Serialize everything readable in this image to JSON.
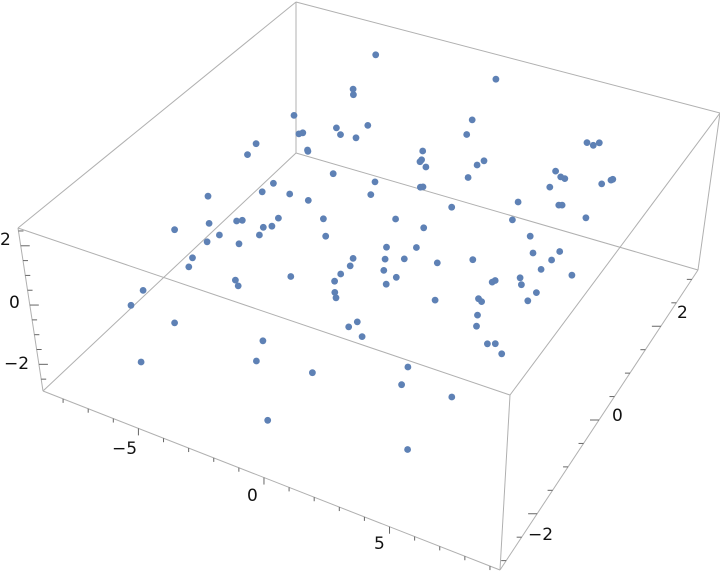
{
  "chart_data": {
    "type": "scatter3d",
    "title": "",
    "xlabel": "",
    "ylabel": "",
    "zlabel": "",
    "xlim": [
      -8.8,
      9.4
    ],
    "ylim": [
      -3.2,
      3.2
    ],
    "zlim": [
      -2.9,
      2.6
    ],
    "x_ticks": [
      "−5",
      "0",
      "5"
    ],
    "y_ticks": [
      "−2",
      "0",
      "2"
    ],
    "z_ticks": [
      "−2",
      "0",
      "2"
    ],
    "box": true,
    "grid": false,
    "point_color": "#5e81b5",
    "box_color": "#b0b0b0",
    "points": [
      [
        -5.2,
        0.3,
        0.5
      ],
      [
        -4.6,
        1.8,
        0.9
      ],
      [
        -5.8,
        -1.2,
        -0.3
      ],
      [
        -4.9,
        2.4,
        1.2
      ],
      [
        -5.5,
        -0.6,
        0.1
      ],
      [
        -4.3,
        0.9,
        1.4
      ],
      [
        -6.1,
        1.1,
        -0.5
      ],
      [
        -5.0,
        -2.1,
        -0.8
      ],
      [
        -4.7,
        0.0,
        -0.2
      ],
      [
        -5.3,
        1.5,
        0.3
      ],
      [
        -6.4,
        -0.3,
        0.8
      ],
      [
        -4.1,
        2.0,
        0.4
      ],
      [
        -5.9,
        0.6,
        1.6
      ],
      [
        -5.1,
        -1.5,
        0.6
      ],
      [
        -4.5,
        -0.8,
        -1.1
      ],
      [
        -5.6,
        2.8,
        0.7
      ],
      [
        -4.8,
        1.2,
        -0.9
      ],
      [
        -6.7,
        -1.8,
        -0.6
      ],
      [
        -5.4,
        0.1,
        2.0
      ],
      [
        -4.2,
        -0.4,
        0.2
      ],
      [
        -5.0,
        3.0,
        1.8
      ],
      [
        -6.0,
        -2.5,
        0.0
      ],
      [
        -4.4,
        1.6,
        -0.4
      ],
      [
        -5.7,
        0.8,
        -1.5
      ],
      [
        -5.2,
        -1.0,
        1.1
      ],
      [
        -4.9,
        0.5,
        -0.6
      ],
      [
        -6.2,
        1.9,
        0.2
      ],
      [
        -3.9,
        0.2,
        0.9
      ],
      [
        -5.3,
        -2.8,
        -1.3
      ],
      [
        -4.6,
        2.6,
        -0.1
      ],
      [
        -5.8,
        -0.1,
        -2.2
      ],
      [
        -5.0,
        1.0,
        2.3
      ],
      [
        -4.3,
        -1.6,
        1.5
      ],
      [
        -6.5,
        0.4,
        -1.0
      ],
      [
        -5.1,
        2.2,
        0.0
      ],
      [
        -4.7,
        -0.5,
        0.7
      ],
      [
        -5.5,
        1.4,
        1.0
      ],
      [
        -4.0,
        1.1,
        -1.2
      ],
      [
        -6.8,
        -0.9,
        0.3
      ],
      [
        -5.4,
        -0.2,
        -0.7
      ],
      [
        0.2,
        0.1,
        0.3
      ],
      [
        -0.5,
        1.6,
        0.8
      ],
      [
        0.8,
        -1.1,
        -0.4
      ],
      [
        0.1,
        2.3,
        1.1
      ],
      [
        -0.7,
        -0.7,
        0.0
      ],
      [
        0.6,
        0.8,
        1.5
      ],
      [
        -1.1,
        1.2,
        -0.6
      ],
      [
        0.3,
        -2.0,
        -1.0
      ],
      [
        0.0,
        0.2,
        -0.3
      ],
      [
        -0.4,
        1.4,
        0.4
      ],
      [
        -1.5,
        -0.4,
        0.9
      ],
      [
        0.9,
        2.1,
        0.5
      ],
      [
        -0.9,
        0.5,
        1.7
      ],
      [
        0.4,
        -1.4,
        0.7
      ],
      [
        0.7,
        -0.9,
        -1.2
      ],
      [
        -0.6,
        2.9,
        0.6
      ],
      [
        0.1,
        1.0,
        -1.0
      ],
      [
        -1.8,
        -1.9,
        -0.7
      ],
      [
        -0.3,
        0.0,
        2.1
      ],
      [
        1.2,
        -0.3,
        0.1
      ],
      [
        0.0,
        3.1,
        1.9
      ],
      [
        -1.0,
        -2.6,
        -0.2
      ],
      [
        0.5,
        1.7,
        -0.5
      ],
      [
        -0.8,
        0.7,
        -1.6
      ],
      [
        0.3,
        -1.2,
        1.2
      ],
      [
        0.2,
        0.6,
        -0.8
      ],
      [
        -1.3,
        2.0,
        0.3
      ],
      [
        1.4,
        0.3,
        1.0
      ],
      [
        -0.2,
        -2.9,
        -1.5
      ],
      [
        0.6,
        2.5,
        0.0
      ],
      [
        -0.9,
        -0.2,
        -2.3
      ],
      [
        0.1,
        1.1,
        2.2
      ],
      [
        0.8,
        -1.7,
        1.4
      ],
      [
        -1.6,
        0.3,
        -1.1
      ],
      [
        0.4,
        2.2,
        -0.2
      ],
      [
        -0.1,
        -0.6,
        0.8
      ],
      [
        -0.6,
        1.5,
        1.1
      ],
      [
        1.0,
        1.0,
        -1.3
      ],
      [
        -2.0,
        -1.0,
        0.2
      ],
      [
        0.5,
        -0.1,
        -0.6
      ],
      [
        5.2,
        0.8,
        0.4
      ],
      [
        4.6,
        2.1,
        0.9
      ],
      [
        5.8,
        -0.7,
        -0.3
      ],
      [
        5.0,
        2.8,
        1.2
      ],
      [
        4.4,
        -0.2,
        0.1
      ],
      [
        5.6,
        1.3,
        1.4
      ],
      [
        4.0,
        1.6,
        -0.5
      ],
      [
        5.3,
        -1.6,
        -0.9
      ],
      [
        5.0,
        0.6,
        -0.2
      ],
      [
        4.7,
        1.9,
        0.3
      ],
      [
        3.7,
        0.1,
        0.8
      ],
      [
        5.9,
        2.6,
        0.4
      ],
      [
        4.2,
        1.0,
        1.6
      ],
      [
        5.4,
        -1.0,
        0.6
      ],
      [
        5.7,
        -0.4,
        -1.1
      ],
      [
        4.5,
        3.0,
        0.7
      ],
      [
        5.1,
        1.5,
        -0.9
      ],
      [
        3.4,
        -1.5,
        -0.6
      ],
      [
        4.8,
        0.4,
        2.0
      ],
      [
        6.2,
        0.2,
        0.2
      ],
      [
        5.0,
        2.4,
        1.8
      ],
      [
        4.1,
        -2.2,
        0.0
      ],
      [
        5.5,
        2.2,
        -0.4
      ],
      [
        4.3,
        1.2,
        -1.5
      ],
      [
        5.3,
        -0.8,
        1.1
      ],
      [
        5.2,
        1.1,
        -0.6
      ],
      [
        3.9,
        2.5,
        0.2
      ],
      [
        6.4,
        0.7,
        0.9
      ],
      [
        4.9,
        -2.6,
        -1.3
      ],
      [
        5.6,
        2.9,
        -0.1
      ],
      [
        4.2,
        0.3,
        -2.2
      ],
      [
        5.1,
        1.4,
        2.3
      ],
      [
        5.8,
        -1.3,
        1.5
      ],
      [
        3.6,
        0.8,
        -1.0
      ],
      [
        5.4,
        2.7,
        0.0
      ],
      [
        4.9,
        -0.1,
        0.7
      ],
      [
        4.4,
        1.8,
        1.0
      ],
      [
        6.0,
        1.5,
        -1.2
      ],
      [
        3.2,
        -0.6,
        0.3
      ],
      [
        5.5,
        0.5,
        -0.7
      ]
    ]
  }
}
